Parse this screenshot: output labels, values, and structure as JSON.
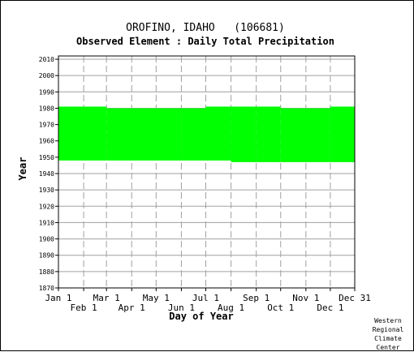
{
  "chart_data": {
    "type": "area",
    "title": "OROFINO, IDAHO   (106681)",
    "subtitle": "Observed Element : Daily Total Precipitation",
    "xlabel": "Day of Year",
    "ylabel": "Year",
    "ylim": [
      1870,
      2012
    ],
    "yticks": [
      1870,
      1880,
      1890,
      1900,
      1910,
      1920,
      1930,
      1940,
      1950,
      1960,
      1970,
      1980,
      1990,
      2000,
      2010
    ],
    "xlim": [
      1,
      365
    ],
    "xticks": [
      {
        "label": "Jan 1",
        "day": 1,
        "row": 1
      },
      {
        "label": "Feb 1",
        "day": 32,
        "row": 2
      },
      {
        "label": "Mar 1",
        "day": 60,
        "row": 1
      },
      {
        "label": "Apr 1",
        "day": 91,
        "row": 2
      },
      {
        "label": "May 1",
        "day": 121,
        "row": 1
      },
      {
        "label": "Jun 1",
        "day": 152,
        "row": 2
      },
      {
        "label": "Jul 1",
        "day": 182,
        "row": 1
      },
      {
        "label": "Aug 1",
        "day": 213,
        "row": 2
      },
      {
        "label": "Sep 1",
        "day": 244,
        "row": 1
      },
      {
        "label": "Oct 1",
        "day": 274,
        "row": 2
      },
      {
        "label": "Nov 1",
        "day": 305,
        "row": 1
      },
      {
        "label": "Dec 1",
        "day": 335,
        "row": 2
      },
      {
        "label": "Dec 31",
        "day": 365,
        "row": 1
      }
    ],
    "grid": true,
    "series": [
      {
        "color": "#00ff00",
        "coverage": [
          {
            "day_start": 1,
            "day_end": 60,
            "year_start": 1948,
            "year_end": 1981
          },
          {
            "day_start": 60,
            "day_end": 152,
            "year_start": 1948,
            "year_end": 1980
          },
          {
            "day_start": 152,
            "day_end": 182,
            "year_start": 1948,
            "year_end": 1980
          },
          {
            "day_start": 182,
            "day_end": 213,
            "year_start": 1948,
            "year_end": 1981
          },
          {
            "day_start": 213,
            "day_end": 244,
            "year_start": 1947,
            "year_end": 1981
          },
          {
            "day_start": 244,
            "day_end": 274,
            "year_start": 1947,
            "year_end": 1981
          },
          {
            "day_start": 274,
            "day_end": 335,
            "year_start": 1947,
            "year_end": 1980
          },
          {
            "day_start": 335,
            "day_end": 365,
            "year_start": 1947,
            "year_end": 1981
          }
        ]
      }
    ]
  },
  "credit": {
    "line1": "Western",
    "line2": "Regional",
    "line3": "Climate",
    "line4": "Center"
  }
}
